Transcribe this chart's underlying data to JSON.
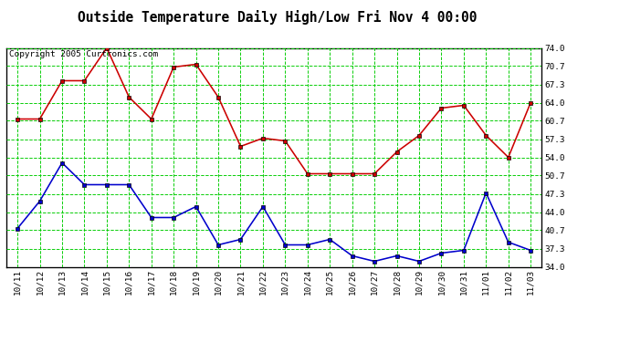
{
  "title": "Outside Temperature Daily High/Low Fri Nov 4 00:00",
  "copyright": "Copyright 2005 Curtronics.com",
  "labels": [
    "10/11",
    "10/12",
    "10/13",
    "10/14",
    "10/15",
    "10/16",
    "10/17",
    "10/18",
    "10/19",
    "10/20",
    "10/21",
    "10/22",
    "10/23",
    "10/24",
    "10/25",
    "10/26",
    "10/27",
    "10/28",
    "10/29",
    "10/30",
    "10/31",
    "11/01",
    "11/02",
    "11/03"
  ],
  "high_temps": [
    61.0,
    61.0,
    68.0,
    68.0,
    74.0,
    65.0,
    61.0,
    70.5,
    71.0,
    65.0,
    56.0,
    57.5,
    57.0,
    51.0,
    51.0,
    51.0,
    51.0,
    55.0,
    58.0,
    63.0,
    63.5,
    58.0,
    54.0,
    64.0
  ],
  "low_temps": [
    41.0,
    46.0,
    53.0,
    49.0,
    49.0,
    49.0,
    43.0,
    43.0,
    45.0,
    38.0,
    39.0,
    45.0,
    38.0,
    38.0,
    39.0,
    36.0,
    35.0,
    36.0,
    35.0,
    36.5,
    37.0,
    47.5,
    38.5,
    37.0
  ],
  "high_color": "#cc0000",
  "low_color": "#0000cc",
  "bg_color": "#ffffff",
  "grid_color": "#00cc00",
  "border_color": "#000000",
  "yticks": [
    34.0,
    37.3,
    40.7,
    44.0,
    47.3,
    50.7,
    54.0,
    57.3,
    60.7,
    64.0,
    67.3,
    70.7,
    74.0
  ],
  "ylim": [
    34.0,
    74.0
  ],
  "title_fontsize": 11,
  "label_fontsize": 7,
  "copyright_fontsize": 7
}
